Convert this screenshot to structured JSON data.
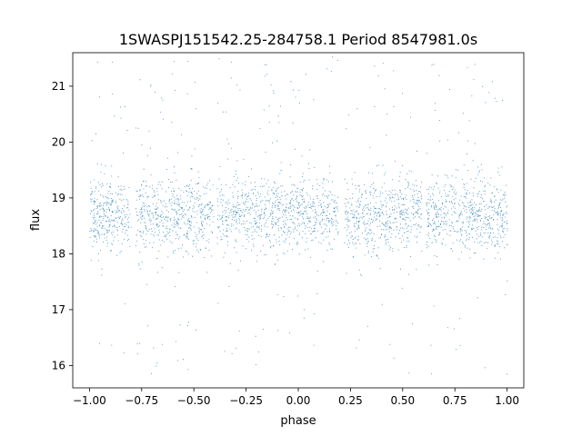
{
  "chart_data": {
    "type": "scatter",
    "title": "1SWASPJ151542.25-284758.1 Period 8547981.0s",
    "xlabel": "phase",
    "ylabel": "flux",
    "xlim": [
      -1.08,
      1.08
    ],
    "ylim": [
      15.6,
      21.6
    ],
    "x_ticks": [
      -1.0,
      -0.75,
      -0.5,
      -0.25,
      0.0,
      0.25,
      0.5,
      0.75,
      1.0
    ],
    "x_tick_labels": [
      "−1.00",
      "−0.75",
      "−0.50",
      "−0.25",
      "0.00",
      "0.25",
      "0.50",
      "0.75",
      "1.00"
    ],
    "y_ticks": [
      16,
      17,
      18,
      19,
      20,
      21
    ],
    "y_tick_labels": [
      "16",
      "17",
      "18",
      "19",
      "20",
      "21"
    ],
    "grid": false,
    "legend": "none",
    "marker_color": "#1f77b4",
    "series": [
      {
        "phase_range": [
          -1.0,
          1.0
        ],
        "flux_core_mean": 18.7,
        "flux_core_spread": 0.32,
        "flux_outlier_range": [
          15.85,
          21.55
        ],
        "gaps_phase": [
          [
            -0.81,
            -0.78
          ],
          [
            -0.41,
            -0.39
          ],
          [
            0.19,
            0.22
          ],
          [
            0.59,
            0.61
          ]
        ],
        "x": [
          -0.98,
          -0.9,
          -0.8,
          -0.7,
          -0.6,
          -0.5,
          -0.4,
          -0.3,
          -0.2,
          -0.1,
          0.0,
          0.1,
          0.2,
          0.3,
          0.4,
          0.5,
          0.6,
          0.7,
          0.8,
          0.9,
          0.98
        ],
        "y": [
          18.7,
          18.75,
          18.6,
          18.65,
          18.8,
          18.7,
          18.65,
          18.75,
          18.7,
          18.6,
          18.65,
          18.7,
          18.6,
          18.65,
          18.7,
          18.75,
          18.7,
          18.75,
          18.8,
          18.7,
          18.65
        ]
      }
    ]
  }
}
